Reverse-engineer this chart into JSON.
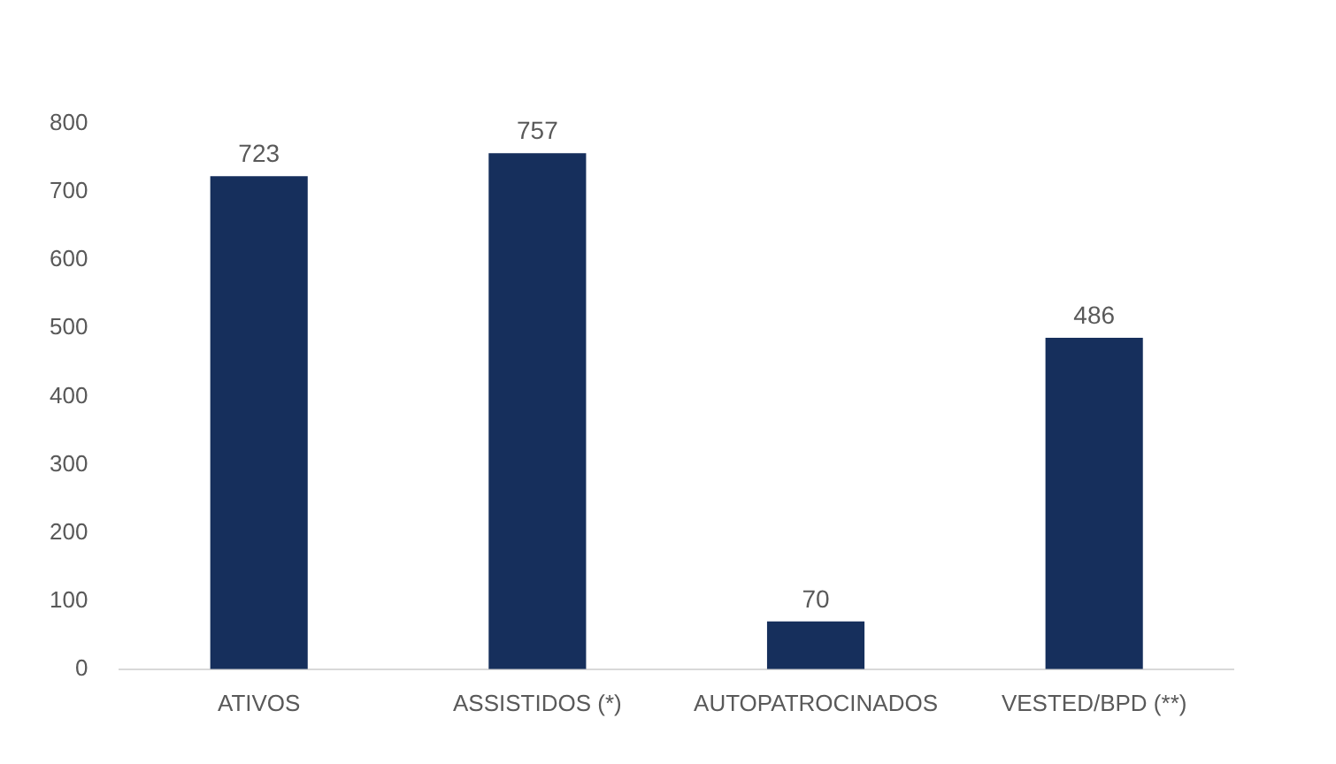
{
  "chart_data": {
    "type": "bar",
    "categories": [
      "ATIVOS",
      "ASSISTIDOS (*)",
      "AUTOPATROCINADOS",
      "VESTED/BPD (**)"
    ],
    "values": [
      723,
      757,
      70,
      486
    ],
    "color": "#162f5c",
    "ylim": [
      0,
      800
    ],
    "yticks": [
      0,
      100,
      200,
      300,
      400,
      500,
      600,
      700,
      800
    ],
    "grid": false,
    "data_labels": true,
    "legend": false
  }
}
